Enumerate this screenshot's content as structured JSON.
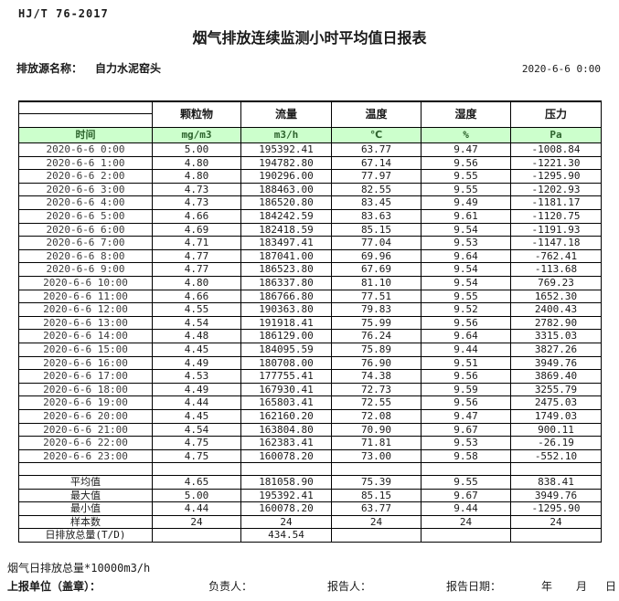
{
  "header": {
    "standard_no": "HJ/T  76-2017",
    "title": "烟气排放连续监测小时平均值日报表",
    "source_label": "排放源名称：",
    "source_name": "自力水泥窑头",
    "report_time": "2020-6-6 0:00"
  },
  "table": {
    "time_header": "时间",
    "columns": [
      "颗粒物",
      "流量",
      "温度",
      "湿度",
      "压力"
    ],
    "units": [
      "mg/m3",
      "m3/h",
      "℃",
      "%",
      "Pa"
    ],
    "rows": [
      {
        "time": "2020-6-6 0:00",
        "values": [
          "5.00",
          "195392.41",
          "63.77",
          "9.47",
          "-1008.84"
        ]
      },
      {
        "time": "2020-6-6 1:00",
        "values": [
          "4.80",
          "194782.80",
          "67.14",
          "9.56",
          "-1221.30"
        ]
      },
      {
        "time": "2020-6-6 2:00",
        "values": [
          "4.80",
          "190296.00",
          "77.97",
          "9.55",
          "-1295.90"
        ]
      },
      {
        "time": "2020-6-6 3:00",
        "values": [
          "4.73",
          "188463.00",
          "82.55",
          "9.55",
          "-1202.93"
        ]
      },
      {
        "time": "2020-6-6 4:00",
        "values": [
          "4.73",
          "186520.80",
          "83.45",
          "9.49",
          "-1181.17"
        ]
      },
      {
        "time": "2020-6-6 5:00",
        "values": [
          "4.66",
          "184242.59",
          "83.63",
          "9.61",
          "-1120.75"
        ]
      },
      {
        "time": "2020-6-6 6:00",
        "values": [
          "4.69",
          "182418.59",
          "85.15",
          "9.54",
          "-1191.93"
        ]
      },
      {
        "time": "2020-6-6 7:00",
        "values": [
          "4.71",
          "183497.41",
          "77.04",
          "9.53",
          "-1147.18"
        ]
      },
      {
        "time": "2020-6-6 8:00",
        "values": [
          "4.77",
          "187041.00",
          "69.96",
          "9.64",
          "-762.41"
        ]
      },
      {
        "time": "2020-6-6 9:00",
        "values": [
          "4.77",
          "186523.80",
          "67.69",
          "9.54",
          "-113.68"
        ]
      },
      {
        "time": "2020-6-6 10:00",
        "values": [
          "4.80",
          "186337.80",
          "81.10",
          "9.54",
          "769.23"
        ]
      },
      {
        "time": "2020-6-6 11:00",
        "values": [
          "4.66",
          "186766.80",
          "77.51",
          "9.55",
          "1652.30"
        ]
      },
      {
        "time": "2020-6-6 12:00",
        "values": [
          "4.55",
          "190363.80",
          "79.83",
          "9.52",
          "2400.43"
        ]
      },
      {
        "time": "2020-6-6 13:00",
        "values": [
          "4.54",
          "191918.41",
          "75.99",
          "9.56",
          "2782.90"
        ]
      },
      {
        "time": "2020-6-6 14:00",
        "values": [
          "4.48",
          "186129.00",
          "76.24",
          "9.64",
          "3315.03"
        ]
      },
      {
        "time": "2020-6-6 15:00",
        "values": [
          "4.45",
          "184095.59",
          "75.89",
          "9.44",
          "3827.26"
        ]
      },
      {
        "time": "2020-6-6 16:00",
        "values": [
          "4.49",
          "180708.00",
          "76.90",
          "9.51",
          "3949.76"
        ]
      },
      {
        "time": "2020-6-6 17:00",
        "values": [
          "4.53",
          "177755.41",
          "74.38",
          "9.56",
          "3869.40"
        ]
      },
      {
        "time": "2020-6-6 18:00",
        "values": [
          "4.49",
          "167930.41",
          "72.73",
          "9.59",
          "3255.79"
        ]
      },
      {
        "time": "2020-6-6 19:00",
        "values": [
          "4.44",
          "165803.41",
          "72.55",
          "9.56",
          "2475.03"
        ]
      },
      {
        "time": "2020-6-6 20:00",
        "values": [
          "4.45",
          "162160.20",
          "72.08",
          "9.47",
          "1749.03"
        ]
      },
      {
        "time": "2020-6-6 21:00",
        "values": [
          "4.54",
          "163804.80",
          "70.90",
          "9.67",
          "900.11"
        ]
      },
      {
        "time": "2020-6-6 22:00",
        "values": [
          "4.75",
          "162383.41",
          "71.81",
          "9.53",
          "-26.19"
        ]
      },
      {
        "time": "2020-6-6 23:00",
        "values": [
          "4.75",
          "160078.20",
          "73.00",
          "9.58",
          "-552.10"
        ]
      }
    ],
    "summary": [
      {
        "label": "平均值",
        "values": [
          "4.65",
          "181058.90",
          "75.39",
          "9.55",
          "838.41"
        ]
      },
      {
        "label": "最大值",
        "values": [
          "5.00",
          "195392.41",
          "85.15",
          "9.67",
          "3949.76"
        ]
      },
      {
        "label": "最小值",
        "values": [
          "4.44",
          "160078.20",
          "63.77",
          "9.44",
          "-1295.90"
        ]
      },
      {
        "label": "样本数",
        "values": [
          "24",
          "24",
          "24",
          "24",
          "24"
        ]
      },
      {
        "label": "日排放总量(T/D)",
        "values": [
          "",
          "434.54",
          "",
          "",
          ""
        ]
      }
    ]
  },
  "footer": {
    "note": "烟气日排放总量*10000m3/h",
    "unit_label": "上报单位（盖章）：",
    "manager_label": "负责人：",
    "reporter_label": "报告人：",
    "date_label": "报告日期：",
    "year_label": "年",
    "month_label": "月",
    "day_label": "日"
  },
  "colors": {
    "units_row_bg": "#ccffcc",
    "units_row_text": "#2d632d",
    "border": "#000000"
  }
}
